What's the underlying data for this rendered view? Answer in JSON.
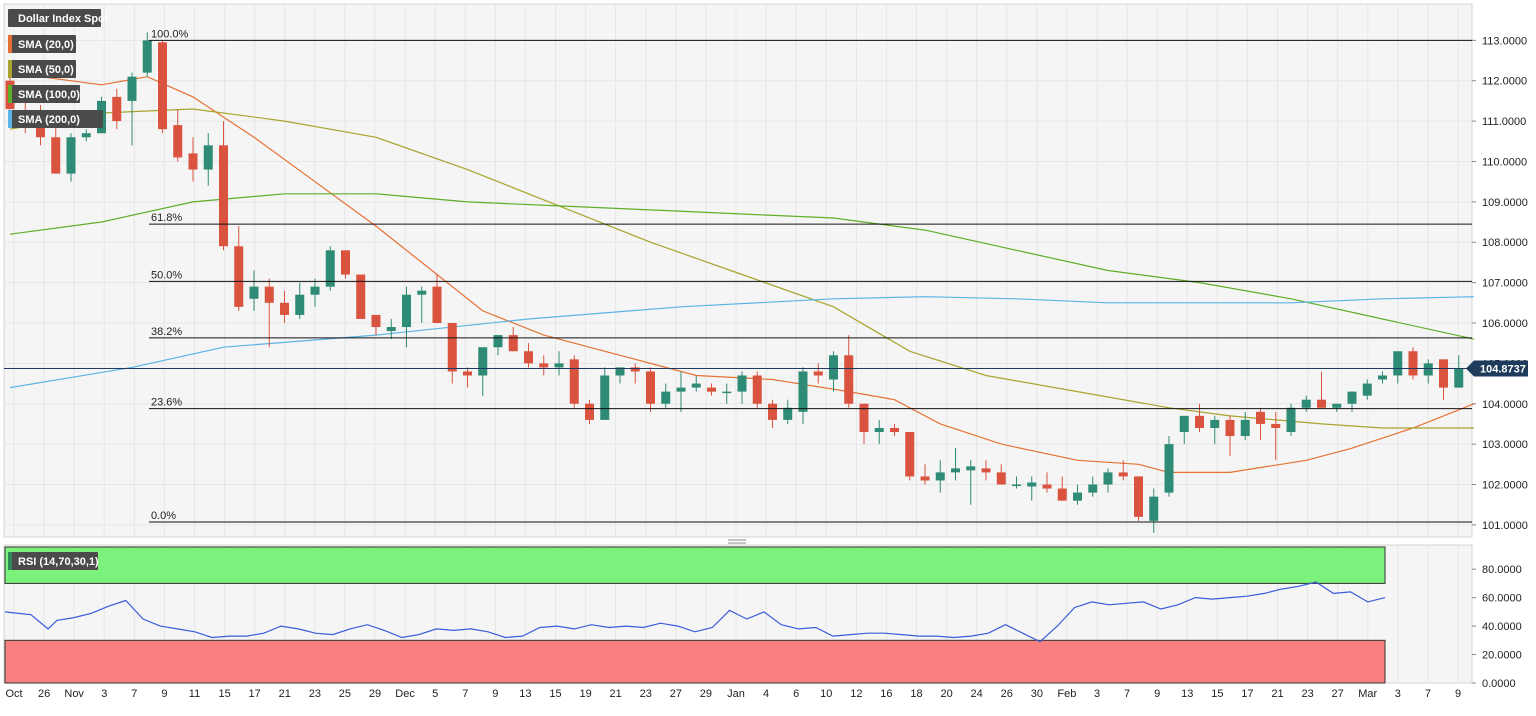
{
  "chart_data": {
    "type": "candlestick",
    "title": "Dollar Index Spot",
    "series_colors": {
      "up": "#2e8b75",
      "down": "#d9533f"
    },
    "price_axis": {
      "ylim": [
        100.7,
        113.9
      ],
      "ticks": [
        "113.0000",
        "112.0000",
        "111.0000",
        "110.0000",
        "109.0000",
        "108.0000",
        "107.0000",
        "106.0000",
        "105.0000",
        "104.0000",
        "103.0000",
        "102.0000",
        "101.0000"
      ]
    },
    "last_price": "104.8737",
    "fibonacci": [
      {
        "label": "100.0%",
        "value": 113.0
      },
      {
        "label": "61.8%",
        "value": 108.45
      },
      {
        "label": "50.0%",
        "value": 107.03
      },
      {
        "label": "38.2%",
        "value": 105.63
      },
      {
        "label": "23.6%",
        "value": 103.88
      },
      {
        "label": "0.0%",
        "value": 101.07
      }
    ],
    "date_labels": [
      "Oct",
      "26",
      "Nov",
      "3",
      "7",
      "9",
      "11",
      "15",
      "17",
      "21",
      "23",
      "25",
      "29",
      "Dec",
      "5",
      "7",
      "9",
      "13",
      "15",
      "19",
      "21",
      "23",
      "27",
      "29",
      "Jan",
      "4",
      "6",
      "10",
      "12",
      "16",
      "18",
      "20",
      "24",
      "26",
      "30",
      "Feb",
      "3",
      "7",
      "9",
      "13",
      "15",
      "17",
      "21",
      "23",
      "27",
      "Mar",
      "3",
      "7",
      "9"
    ],
    "candles": [
      {
        "o": 112.0,
        "h": 112.3,
        "l": 111.1,
        "c": 111.3
      },
      {
        "o": 111.2,
        "h": 111.6,
        "l": 110.7,
        "c": 111.1
      },
      {
        "o": 111.1,
        "h": 111.4,
        "l": 110.4,
        "c": 110.6
      },
      {
        "o": 110.6,
        "h": 110.9,
        "l": 109.7,
        "c": 109.7
      },
      {
        "o": 109.7,
        "h": 110.7,
        "l": 109.5,
        "c": 110.6
      },
      {
        "o": 110.6,
        "h": 110.8,
        "l": 110.5,
        "c": 110.7
      },
      {
        "o": 110.7,
        "h": 111.6,
        "l": 110.7,
        "c": 111.5
      },
      {
        "o": 111.6,
        "h": 111.8,
        "l": 110.8,
        "c": 111.0
      },
      {
        "o": 111.5,
        "h": 112.2,
        "l": 110.4,
        "c": 112.1
      },
      {
        "o": 112.2,
        "h": 113.2,
        "l": 112.1,
        "c": 113.0
      },
      {
        "o": 112.95,
        "h": 113.0,
        "l": 110.7,
        "c": 110.8
      },
      {
        "o": 110.9,
        "h": 111.3,
        "l": 110.0,
        "c": 110.1
      },
      {
        "o": 110.2,
        "h": 110.6,
        "l": 109.5,
        "c": 109.8
      },
      {
        "o": 109.8,
        "h": 110.7,
        "l": 109.4,
        "c": 110.4
      },
      {
        "o": 110.4,
        "h": 111.0,
        "l": 107.8,
        "c": 107.9
      },
      {
        "o": 107.9,
        "h": 108.4,
        "l": 106.3,
        "c": 106.4
      },
      {
        "o": 106.6,
        "h": 107.3,
        "l": 106.3,
        "c": 106.9
      },
      {
        "o": 106.9,
        "h": 107.1,
        "l": 105.4,
        "c": 106.5
      },
      {
        "o": 106.5,
        "h": 106.8,
        "l": 106.0,
        "c": 106.2
      },
      {
        "o": 106.2,
        "h": 107.0,
        "l": 106.1,
        "c": 106.7
      },
      {
        "o": 106.7,
        "h": 107.1,
        "l": 106.4,
        "c": 106.9
      },
      {
        "o": 106.9,
        "h": 107.9,
        "l": 106.8,
        "c": 107.8
      },
      {
        "o": 107.8,
        "h": 107.8,
        "l": 107.1,
        "c": 107.2
      },
      {
        "o": 107.2,
        "h": 107.2,
        "l": 106.1,
        "c": 106.1
      },
      {
        "o": 106.2,
        "h": 106.2,
        "l": 105.7,
        "c": 105.9
      },
      {
        "o": 105.8,
        "h": 106.1,
        "l": 105.6,
        "c": 105.9
      },
      {
        "o": 105.9,
        "h": 106.9,
        "l": 105.4,
        "c": 106.7
      },
      {
        "o": 106.7,
        "h": 106.9,
        "l": 106.0,
        "c": 106.8
      },
      {
        "o": 106.9,
        "h": 107.2,
        "l": 106.1,
        "c": 106.0
      },
      {
        "o": 106.0,
        "h": 106.0,
        "l": 104.5,
        "c": 104.8
      },
      {
        "o": 104.8,
        "h": 104.9,
        "l": 104.4,
        "c": 104.7
      },
      {
        "o": 104.7,
        "h": 105.3,
        "l": 104.2,
        "c": 105.4
      },
      {
        "o": 105.4,
        "h": 105.7,
        "l": 105.2,
        "c": 105.7
      },
      {
        "o": 105.7,
        "h": 105.9,
        "l": 105.3,
        "c": 105.3
      },
      {
        "o": 105.3,
        "h": 105.5,
        "l": 104.9,
        "c": 105.0
      },
      {
        "o": 105.0,
        "h": 105.2,
        "l": 104.7,
        "c": 104.9
      },
      {
        "o": 104.9,
        "h": 105.3,
        "l": 104.7,
        "c": 105.0
      },
      {
        "o": 105.1,
        "h": 105.2,
        "l": 103.9,
        "c": 104.0
      },
      {
        "o": 104.0,
        "h": 104.1,
        "l": 103.5,
        "c": 103.6
      },
      {
        "o": 103.6,
        "h": 104.9,
        "l": 103.6,
        "c": 104.7
      },
      {
        "o": 104.7,
        "h": 104.9,
        "l": 104.5,
        "c": 104.9
      },
      {
        "o": 104.9,
        "h": 105.0,
        "l": 104.5,
        "c": 104.8
      },
      {
        "o": 104.8,
        "h": 104.9,
        "l": 103.8,
        "c": 104.0
      },
      {
        "o": 104.0,
        "h": 104.5,
        "l": 103.9,
        "c": 104.3
      },
      {
        "o": 104.3,
        "h": 104.8,
        "l": 103.8,
        "c": 104.4
      },
      {
        "o": 104.4,
        "h": 104.7,
        "l": 104.3,
        "c": 104.5
      },
      {
        "o": 104.4,
        "h": 104.5,
        "l": 104.2,
        "c": 104.3
      },
      {
        "o": 104.3,
        "h": 104.5,
        "l": 104.0,
        "c": 104.3
      },
      {
        "o": 104.3,
        "h": 104.8,
        "l": 104.0,
        "c": 104.7
      },
      {
        "o": 104.7,
        "h": 104.8,
        "l": 103.9,
        "c": 104.0
      },
      {
        "o": 104.0,
        "h": 104.1,
        "l": 103.4,
        "c": 103.6
      },
      {
        "o": 103.6,
        "h": 104.1,
        "l": 103.5,
        "c": 103.9
      },
      {
        "o": 103.8,
        "h": 104.9,
        "l": 103.5,
        "c": 104.8
      },
      {
        "o": 104.8,
        "h": 105.0,
        "l": 104.5,
        "c": 104.7
      },
      {
        "o": 104.6,
        "h": 105.3,
        "l": 104.3,
        "c": 105.2
      },
      {
        "o": 105.2,
        "h": 105.7,
        "l": 103.9,
        "c": 104.0
      },
      {
        "o": 104.0,
        "h": 104.0,
        "l": 103.0,
        "c": 103.3
      },
      {
        "o": 103.3,
        "h": 103.6,
        "l": 103.0,
        "c": 103.4
      },
      {
        "o": 103.4,
        "h": 103.5,
        "l": 103.2,
        "c": 103.3
      },
      {
        "o": 103.3,
        "h": 103.3,
        "l": 102.1,
        "c": 102.2
      },
      {
        "o": 102.2,
        "h": 102.5,
        "l": 102.0,
        "c": 102.1
      },
      {
        "o": 102.1,
        "h": 102.6,
        "l": 101.8,
        "c": 102.3
      },
      {
        "o": 102.3,
        "h": 102.9,
        "l": 102.1,
        "c": 102.4
      },
      {
        "o": 102.35,
        "h": 102.6,
        "l": 101.5,
        "c": 102.45
      },
      {
        "o": 102.4,
        "h": 102.6,
        "l": 102.1,
        "c": 102.3
      },
      {
        "o": 102.3,
        "h": 102.5,
        "l": 102.0,
        "c": 102.0
      },
      {
        "o": 102.0,
        "h": 102.2,
        "l": 101.9,
        "c": 102.0
      },
      {
        "o": 101.95,
        "h": 102.2,
        "l": 101.6,
        "c": 102.05
      },
      {
        "o": 102.0,
        "h": 102.3,
        "l": 101.8,
        "c": 101.9
      },
      {
        "o": 101.9,
        "h": 102.2,
        "l": 101.6,
        "c": 101.6
      },
      {
        "o": 101.6,
        "h": 102.0,
        "l": 101.5,
        "c": 101.8
      },
      {
        "o": 101.8,
        "h": 102.2,
        "l": 101.7,
        "c": 102.0
      },
      {
        "o": 102.0,
        "h": 102.4,
        "l": 101.8,
        "c": 102.3
      },
      {
        "o": 102.3,
        "h": 102.6,
        "l": 102.1,
        "c": 102.2
      },
      {
        "o": 102.2,
        "h": 102.2,
        "l": 101.1,
        "c": 101.2
      },
      {
        "o": 101.1,
        "h": 101.9,
        "l": 100.8,
        "c": 101.7
      },
      {
        "o": 101.8,
        "h": 103.2,
        "l": 101.7,
        "c": 103.0
      },
      {
        "o": 103.3,
        "h": 103.7,
        "l": 103.0,
        "c": 103.7
      },
      {
        "o": 103.7,
        "h": 104.0,
        "l": 103.3,
        "c": 103.4
      },
      {
        "o": 103.4,
        "h": 103.7,
        "l": 103.0,
        "c": 103.6
      },
      {
        "o": 103.6,
        "h": 103.7,
        "l": 102.7,
        "c": 103.2
      },
      {
        "o": 103.2,
        "h": 103.8,
        "l": 103.1,
        "c": 103.6
      },
      {
        "o": 103.8,
        "h": 103.9,
        "l": 103.1,
        "c": 103.5
      },
      {
        "o": 103.5,
        "h": 103.8,
        "l": 102.6,
        "c": 103.4
      },
      {
        "o": 103.3,
        "h": 104.0,
        "l": 103.2,
        "c": 103.9
      },
      {
        "o": 103.9,
        "h": 104.2,
        "l": 103.8,
        "c": 104.1
      },
      {
        "o": 104.1,
        "h": 104.8,
        "l": 103.9,
        "c": 103.9
      },
      {
        "o": 103.9,
        "h": 104.0,
        "l": 103.8,
        "c": 104.0
      },
      {
        "o": 104.0,
        "h": 104.3,
        "l": 103.8,
        "c": 104.3
      },
      {
        "o": 104.2,
        "h": 104.6,
        "l": 104.1,
        "c": 104.5
      },
      {
        "o": 104.6,
        "h": 104.8,
        "l": 104.5,
        "c": 104.7
      },
      {
        "o": 104.7,
        "h": 105.3,
        "l": 104.5,
        "c": 105.3
      },
      {
        "o": 105.3,
        "h": 105.4,
        "l": 104.6,
        "c": 104.7
      },
      {
        "o": 104.7,
        "h": 105.1,
        "l": 104.5,
        "c": 105.0
      },
      {
        "o": 105.1,
        "h": 105.1,
        "l": 104.1,
        "c": 104.4
      },
      {
        "o": 104.4,
        "h": 105.2,
        "l": 104.4,
        "c": 104.87
      }
    ],
    "moving_averages": [
      {
        "name": "SMA (20,0)",
        "color": "#e57234",
        "points": [
          [
            0,
            112.2
          ],
          [
            6,
            111.9
          ],
          [
            9,
            112.1
          ],
          [
            12,
            111.6
          ],
          [
            16,
            110.6
          ],
          [
            20,
            109.5
          ],
          [
            24,
            108.4
          ],
          [
            28,
            107.2
          ],
          [
            31,
            106.3
          ],
          [
            35,
            105.7
          ],
          [
            40,
            105.2
          ],
          [
            45,
            104.7
          ],
          [
            50,
            104.6
          ],
          [
            55,
            104.3
          ],
          [
            58,
            104.1
          ],
          [
            61,
            103.5
          ],
          [
            65,
            103.0
          ],
          [
            70,
            102.6
          ],
          [
            74,
            102.5
          ],
          [
            76,
            102.3
          ],
          [
            80,
            102.3
          ],
          [
            85,
            102.6
          ],
          [
            88,
            102.9
          ],
          [
            92,
            103.4
          ],
          [
            96,
            104.0
          ]
        ]
      },
      {
        "name": "SMA (50,0)",
        "color": "#a8a42e",
        "points": [
          [
            0,
            110.8
          ],
          [
            6,
            111.2
          ],
          [
            12,
            111.3
          ],
          [
            18,
            111.0
          ],
          [
            24,
            110.6
          ],
          [
            30,
            109.8
          ],
          [
            36,
            108.9
          ],
          [
            42,
            108.0
          ],
          [
            48,
            107.2
          ],
          [
            54,
            106.4
          ],
          [
            59,
            105.3
          ],
          [
            64,
            104.7
          ],
          [
            70,
            104.3
          ],
          [
            76,
            103.9
          ],
          [
            80,
            103.7
          ],
          [
            86,
            103.5
          ],
          [
            90,
            103.4
          ],
          [
            96,
            103.4
          ]
        ]
      },
      {
        "name": "SMA (100,0)",
        "color": "#5fae28",
        "points": [
          [
            0,
            108.2
          ],
          [
            6,
            108.5
          ],
          [
            12,
            109.0
          ],
          [
            18,
            109.2
          ],
          [
            24,
            109.2
          ],
          [
            30,
            109.0
          ],
          [
            36,
            108.9
          ],
          [
            42,
            108.8
          ],
          [
            48,
            108.7
          ],
          [
            54,
            108.6
          ],
          [
            60,
            108.3
          ],
          [
            66,
            107.8
          ],
          [
            72,
            107.3
          ],
          [
            78,
            107.0
          ],
          [
            84,
            106.6
          ],
          [
            90,
            106.1
          ],
          [
            96,
            105.6
          ]
        ]
      },
      {
        "name": "SMA (200,0)",
        "color": "#5ab4e5",
        "points": [
          [
            0,
            104.4
          ],
          [
            8,
            104.9
          ],
          [
            14,
            105.4
          ],
          [
            24,
            105.7
          ],
          [
            34,
            106.1
          ],
          [
            44,
            106.4
          ],
          [
            54,
            106.6
          ],
          [
            60,
            106.65
          ],
          [
            66,
            106.6
          ],
          [
            72,
            106.5
          ],
          [
            78,
            106.5
          ],
          [
            84,
            106.5
          ],
          [
            90,
            106.6
          ],
          [
            96,
            106.65
          ]
        ]
      }
    ],
    "rsi": {
      "label": "RSI (14,70,30,1)",
      "ylim": [
        0,
        97
      ],
      "overbought": 70,
      "oversold": 30,
      "ticks": [
        "80.0000",
        "60.0000",
        "40.0000",
        "20.0000",
        "0.0000"
      ],
      "color": "#3b5bd9",
      "points": [
        [
          0,
          50
        ],
        [
          3,
          48
        ],
        [
          5,
          38
        ],
        [
          6,
          44
        ],
        [
          8,
          46
        ],
        [
          10,
          49
        ],
        [
          12,
          54
        ],
        [
          14,
          58
        ],
        [
          16,
          45
        ],
        [
          18,
          40
        ],
        [
          20,
          38
        ],
        [
          22,
          36
        ],
        [
          24,
          32
        ],
        [
          26,
          33
        ],
        [
          28,
          33
        ],
        [
          30,
          35
        ],
        [
          32,
          40
        ],
        [
          34,
          38
        ],
        [
          36,
          35
        ],
        [
          38,
          34
        ],
        [
          40,
          38
        ],
        [
          42,
          41
        ],
        [
          44,
          37
        ],
        [
          46,
          32
        ],
        [
          48,
          34
        ],
        [
          50,
          38
        ],
        [
          52,
          37
        ],
        [
          54,
          38
        ],
        [
          56,
          36
        ],
        [
          58,
          32
        ],
        [
          60,
          33
        ],
        [
          62,
          39
        ],
        [
          64,
          40
        ],
        [
          66,
          38
        ],
        [
          68,
          41
        ],
        [
          70,
          39
        ],
        [
          72,
          40
        ],
        [
          74,
          39
        ],
        [
          76,
          42
        ],
        [
          78,
          40
        ],
        [
          80,
          36
        ],
        [
          82,
          39
        ],
        [
          84,
          51
        ],
        [
          86,
          45
        ],
        [
          88,
          50
        ],
        [
          90,
          41
        ],
        [
          92,
          38
        ],
        [
          94,
          39
        ],
        [
          96,
          33
        ],
        [
          98,
          34
        ],
        [
          100,
          35
        ],
        [
          102,
          35
        ],
        [
          104,
          34
        ],
        [
          106,
          33
        ],
        [
          108,
          33
        ],
        [
          110,
          32
        ],
        [
          112,
          33
        ],
        [
          114,
          35
        ],
        [
          116,
          41
        ],
        [
          118,
          35
        ],
        [
          120,
          29
        ],
        [
          122,
          40
        ],
        [
          124,
          53
        ],
        [
          126,
          57
        ],
        [
          128,
          55
        ],
        [
          130,
          56
        ],
        [
          132,
          57
        ],
        [
          134,
          52
        ],
        [
          136,
          55
        ],
        [
          138,
          60
        ],
        [
          140,
          59
        ],
        [
          142,
          60
        ],
        [
          144,
          61
        ],
        [
          146,
          63
        ],
        [
          148,
          66
        ],
        [
          150,
          68
        ],
        [
          152,
          71
        ],
        [
          154,
          63
        ],
        [
          156,
          64
        ],
        [
          158,
          57
        ],
        [
          160,
          60
        ]
      ]
    }
  }
}
